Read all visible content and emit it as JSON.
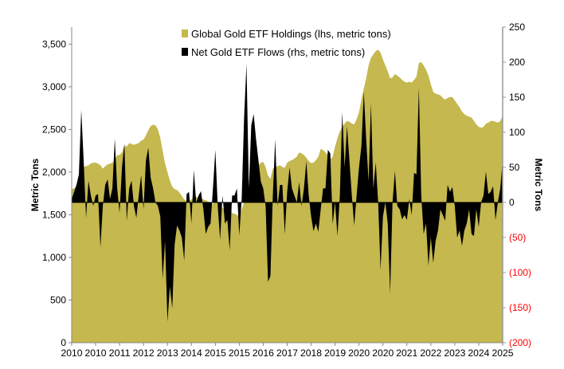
{
  "chart_data": {
    "type": "area",
    "title": "",
    "legend_placement": "top-center",
    "grid": false,
    "colors": {
      "holdings": "#c4b84e",
      "flows": "#000000",
      "negative_tick": "#ff0000"
    },
    "left_axis": {
      "label": "Metric Tons",
      "ylim": [
        0,
        3700
      ],
      "ticks": [
        0,
        500,
        1000,
        1500,
        2000,
        2500,
        3000,
        3500
      ],
      "tick_labels": [
        "0",
        "500",
        "1,000",
        "1,500",
        "2,000",
        "2,500",
        "3,000",
        "3,500"
      ]
    },
    "right_axis": {
      "label": "Metric Tons",
      "ylim": [
        -200,
        250
      ],
      "ticks": [
        250,
        200,
        150,
        100,
        50,
        0,
        -50,
        -100,
        -150,
        -200
      ],
      "tick_labels": [
        "250",
        "200",
        "150",
        "100",
        "50",
        "0",
        "(50)",
        "(100)",
        "(150)",
        "(200)"
      ]
    },
    "x_ticks": [
      {
        "date": "2010-01",
        "label": "2010"
      },
      {
        "date": "2010-11",
        "label": "2010"
      },
      {
        "date": "2011-09",
        "label": "2011"
      },
      {
        "date": "2012-07",
        "label": "2012"
      },
      {
        "date": "2013-05",
        "label": "2013"
      },
      {
        "date": "2014-03",
        "label": "2014"
      },
      {
        "date": "2015-01",
        "label": "2015"
      },
      {
        "date": "2015-11",
        "label": "2015"
      },
      {
        "date": "2016-09",
        "label": "2016"
      },
      {
        "date": "2017-07",
        "label": "2017"
      },
      {
        "date": "2018-05",
        "label": "2018"
      },
      {
        "date": "2019-03",
        "label": "2019"
      },
      {
        "date": "2020-01",
        "label": "2020"
      },
      {
        "date": "2020-11",
        "label": "2020"
      },
      {
        "date": "2021-09",
        "label": "2021"
      },
      {
        "date": "2022-07",
        "label": "2022"
      },
      {
        "date": "2023-05",
        "label": "2023"
      },
      {
        "date": "2024-03",
        "label": "2024"
      },
      {
        "date": "2025-01",
        "label": "2025"
      }
    ],
    "dates": [
      "2010-01",
      "2010-02",
      "2010-03",
      "2010-04",
      "2010-05",
      "2010-06",
      "2010-07",
      "2010-08",
      "2010-09",
      "2010-10",
      "2010-11",
      "2010-12",
      "2011-01",
      "2011-02",
      "2011-03",
      "2011-04",
      "2011-05",
      "2011-06",
      "2011-07",
      "2011-08",
      "2011-09",
      "2011-10",
      "2011-11",
      "2011-12",
      "2012-01",
      "2012-02",
      "2012-03",
      "2012-04",
      "2012-05",
      "2012-06",
      "2012-07",
      "2012-08",
      "2012-09",
      "2012-10",
      "2012-11",
      "2012-12",
      "2013-01",
      "2013-02",
      "2013-03",
      "2013-04",
      "2013-05",
      "2013-06",
      "2013-07",
      "2013-08",
      "2013-09",
      "2013-10",
      "2013-11",
      "2013-12",
      "2014-01",
      "2014-02",
      "2014-03",
      "2014-04",
      "2014-05",
      "2014-06",
      "2014-07",
      "2014-08",
      "2014-09",
      "2014-10",
      "2014-11",
      "2014-12",
      "2015-01",
      "2015-02",
      "2015-03",
      "2015-04",
      "2015-05",
      "2015-06",
      "2015-07",
      "2015-08",
      "2015-09",
      "2015-10",
      "2015-11",
      "2015-12",
      "2016-01",
      "2016-02",
      "2016-03",
      "2016-04",
      "2016-05",
      "2016-06",
      "2016-07",
      "2016-08",
      "2016-09",
      "2016-10",
      "2016-11",
      "2016-12",
      "2017-01",
      "2017-02",
      "2017-03",
      "2017-04",
      "2017-05",
      "2017-06",
      "2017-07",
      "2017-08",
      "2017-09",
      "2017-10",
      "2017-11",
      "2017-12",
      "2018-01",
      "2018-02",
      "2018-03",
      "2018-04",
      "2018-05",
      "2018-06",
      "2018-07",
      "2018-08",
      "2018-09",
      "2018-10",
      "2018-11",
      "2018-12",
      "2019-01",
      "2019-02",
      "2019-03",
      "2019-04",
      "2019-05",
      "2019-06",
      "2019-07",
      "2019-08",
      "2019-09",
      "2019-10",
      "2019-11",
      "2019-12",
      "2020-01",
      "2020-02",
      "2020-03",
      "2020-04",
      "2020-05",
      "2020-06",
      "2020-07",
      "2020-08",
      "2020-09",
      "2020-10",
      "2020-11",
      "2020-12",
      "2021-01",
      "2021-02",
      "2021-03",
      "2021-04",
      "2021-05",
      "2021-06",
      "2021-07",
      "2021-08",
      "2021-09",
      "2021-10",
      "2021-11",
      "2021-12",
      "2022-01",
      "2022-02",
      "2022-03",
      "2022-04",
      "2022-05",
      "2022-06",
      "2022-07",
      "2022-08",
      "2022-09",
      "2022-10",
      "2022-11",
      "2022-12",
      "2023-01",
      "2023-02",
      "2023-03",
      "2023-04",
      "2023-05",
      "2023-06",
      "2023-07",
      "2023-08",
      "2023-09",
      "2023-10",
      "2023-11",
      "2023-12",
      "2024-01",
      "2024-02",
      "2024-03",
      "2024-04",
      "2024-05",
      "2024-06",
      "2024-07",
      "2024-08",
      "2024-09",
      "2024-10",
      "2024-11",
      "2024-12",
      "2025-01"
    ],
    "series": [
      {
        "name": "Global Gold ETF Holdings (lhs, metric tons)",
        "axis": "left",
        "type": "area",
        "values": [
          1800,
          1810,
          1830,
          1850,
          1950,
          2060,
          2070,
          2080,
          2100,
          2110,
          2110,
          2100,
          2080,
          2040,
          2070,
          2090,
          2100,
          2110,
          2140,
          2200,
          2200,
          2230,
          2310,
          2300,
          2340,
          2330,
          2320,
          2330,
          2340,
          2370,
          2380,
          2430,
          2490,
          2540,
          2555,
          2550,
          2500,
          2400,
          2250,
          2100,
          2000,
          1900,
          1830,
          1800,
          1790,
          1760,
          1720,
          1680,
          1660,
          1670,
          1680,
          1700,
          1710,
          1700,
          1690,
          1680,
          1670,
          1650,
          1630,
          1630,
          1650,
          1640,
          1600,
          1580,
          1560,
          1550,
          1530,
          1520,
          1510,
          1500,
          1480,
          1560,
          1650,
          1780,
          1850,
          1900,
          1960,
          2010,
          2080,
          2110,
          2120,
          2060,
          1960,
          1920,
          2040,
          2060,
          2070,
          2080,
          2060,
          2050,
          2110,
          2130,
          2140,
          2160,
          2180,
          2230,
          2220,
          2200,
          2170,
          2130,
          2105,
          2110,
          2140,
          2180,
          2270,
          2260,
          2230,
          2200,
          2150,
          2180,
          2300,
          2400,
          2480,
          2530,
          2570,
          2600,
          2590,
          2570,
          2560,
          2620,
          2700,
          2850,
          2980,
          3100,
          3250,
          3340,
          3380,
          3420,
          3435,
          3400,
          3320,
          3250,
          3180,
          3100,
          3110,
          3150,
          3130,
          3110,
          3080,
          3060,
          3050,
          3060,
          3050,
          3080,
          3120,
          3280,
          3290,
          3250,
          3200,
          3130,
          3030,
          2940,
          2920,
          2910,
          2900,
          2870,
          2850,
          2870,
          2880,
          2880,
          2840,
          2800,
          2760,
          2710,
          2680,
          2660,
          2650,
          2640,
          2600,
          2560,
          2530,
          2520,
          2530,
          2570,
          2580,
          2600,
          2600,
          2590,
          2580,
          2600,
          2660
        ]
      },
      {
        "name": "Net Gold ETF Flows (rhs, metric tons)",
        "axis": "right",
        "type": "area",
        "values": [
          5,
          15,
          25,
          40,
          132,
          60,
          -22,
          31,
          10,
          -5,
          10,
          12,
          -64,
          -5,
          25,
          33,
          5,
          20,
          91,
          20,
          -15,
          50,
          84,
          -26,
          20,
          31,
          -5,
          -22,
          10,
          39,
          -10,
          60,
          78,
          35,
          20,
          0,
          -5,
          -20,
          -109,
          -55,
          -170,
          -120,
          -151,
          -60,
          -33,
          -40,
          -50,
          -83,
          12,
          15,
          -30,
          46,
          0,
          10,
          16,
          -10,
          -45,
          -35,
          -30,
          20,
          75,
          -5,
          -53,
          10,
          -30,
          -25,
          -68,
          10,
          10,
          20,
          -47,
          5,
          120,
          198,
          20,
          110,
          126,
          90,
          60,
          30,
          20,
          -5,
          -113,
          -105,
          10,
          90,
          -5,
          25,
          25,
          -45,
          15,
          50,
          20,
          10,
          0,
          29,
          -5,
          20,
          59,
          10,
          -20,
          -41,
          -30,
          -42,
          -10,
          20,
          20,
          75,
          70,
          -31,
          0,
          -48,
          10,
          129,
          50,
          109,
          60,
          10,
          -33,
          10,
          50,
          80,
          158,
          90,
          30,
          141,
          20,
          57,
          0,
          -96,
          -20,
          0,
          -30,
          -130,
          0,
          45,
          -5,
          -10,
          -24,
          -18,
          -25,
          5,
          -18,
          42,
          40,
          164,
          10,
          -45,
          -30,
          -90,
          -50,
          -86,
          -55,
          -40,
          -10,
          -18,
          -26,
          25,
          15,
          22,
          -5,
          -50,
          -40,
          -62,
          -40,
          -30,
          -10,
          -45,
          -48,
          -10,
          -35,
          0,
          10,
          44,
          12,
          15,
          23,
          -25,
          0,
          20,
          60
        ]
      }
    ]
  }
}
